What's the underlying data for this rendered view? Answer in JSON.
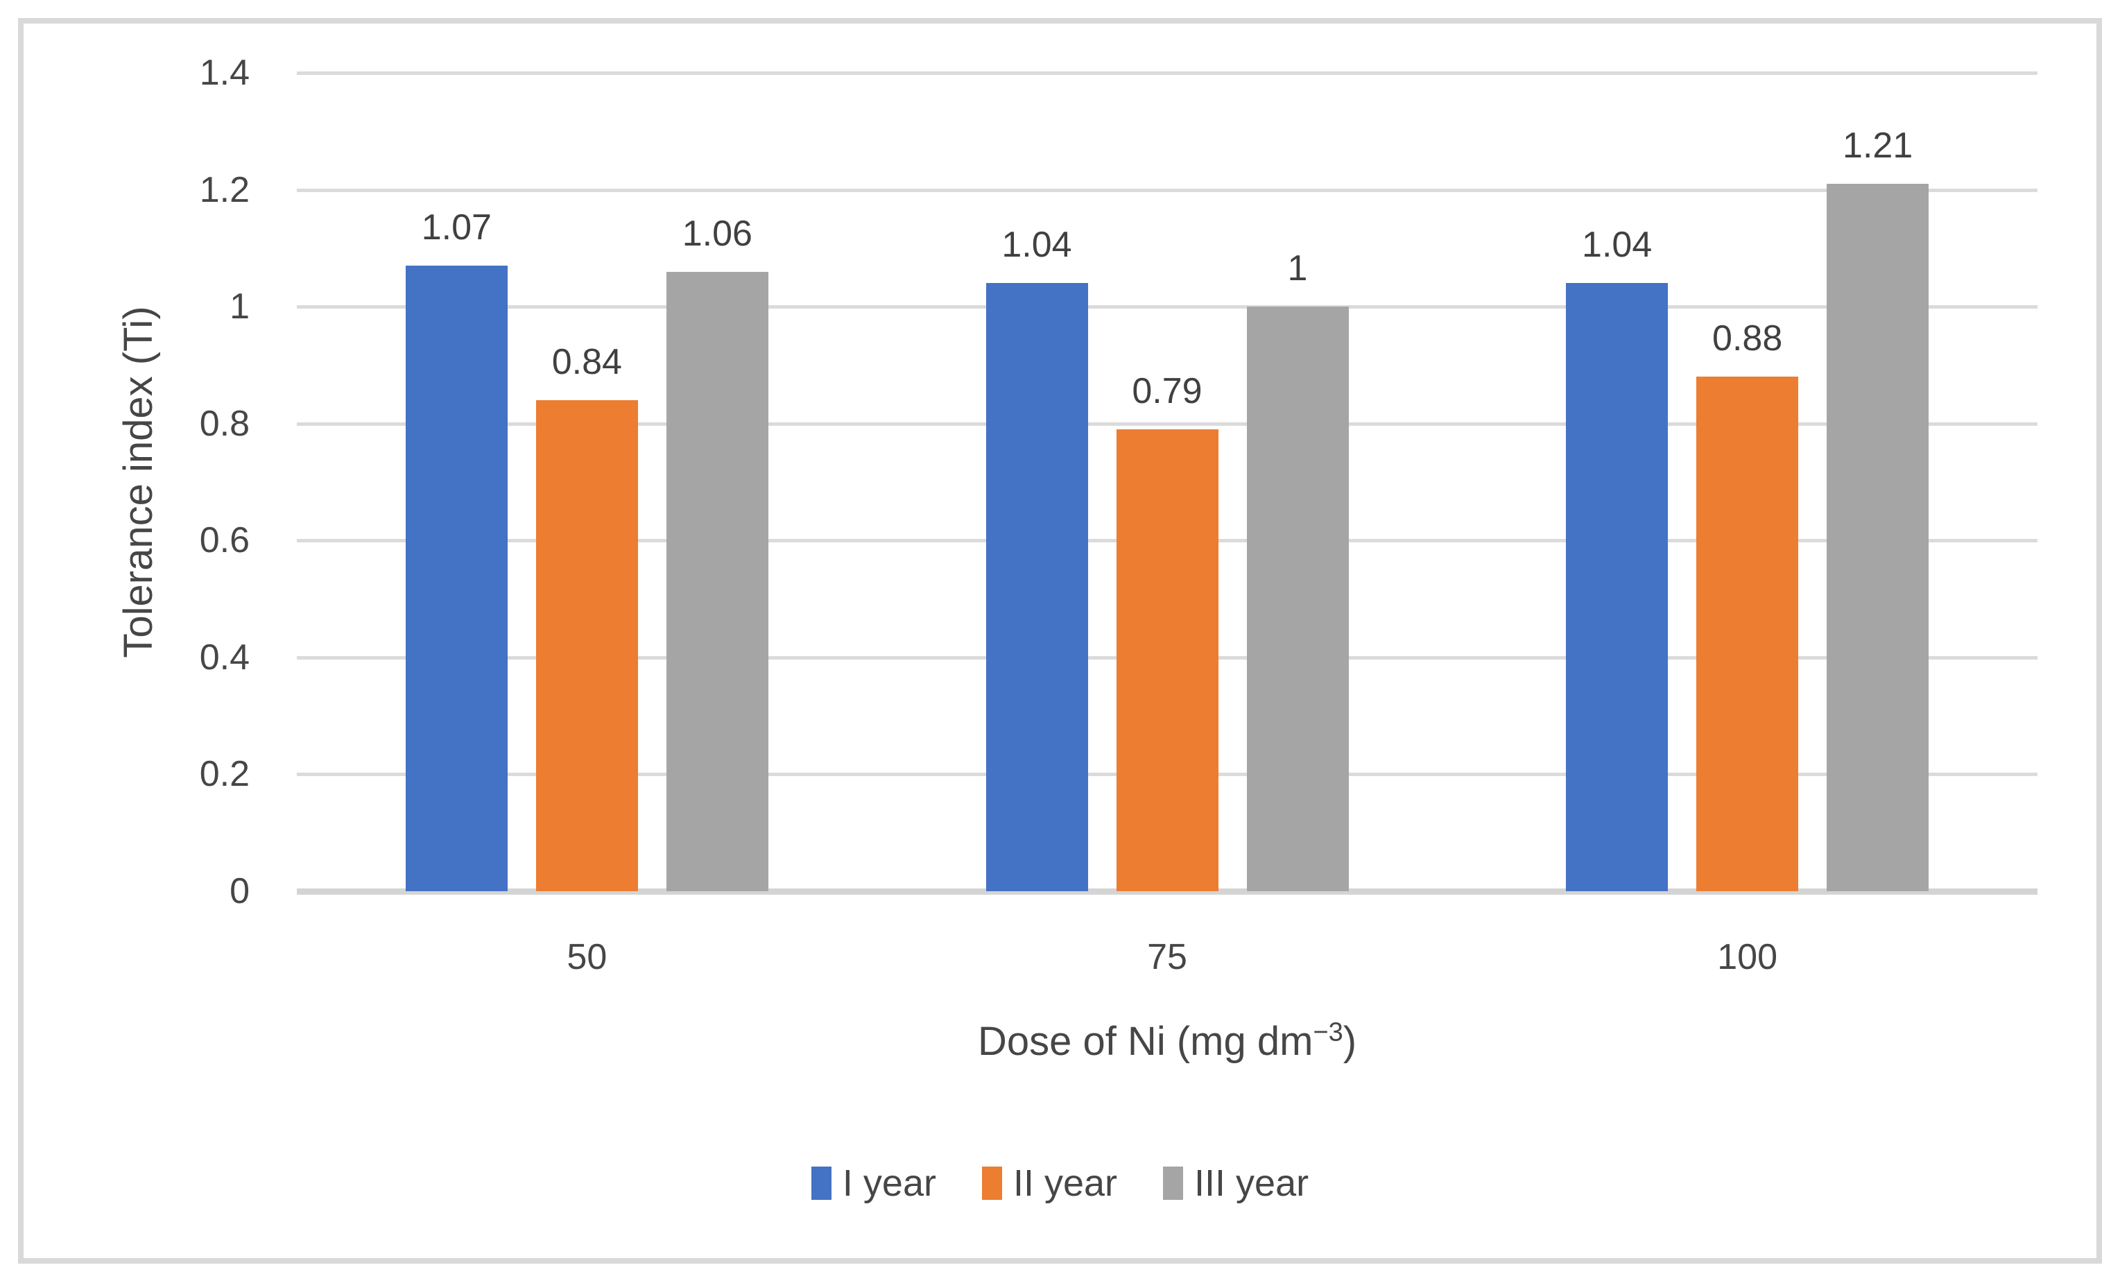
{
  "chart_data": {
    "type": "bar",
    "title": "",
    "categories": [
      "50",
      "75",
      "100"
    ],
    "series": [
      {
        "name": "I year",
        "color": "#4472C4",
        "values": [
          1.07,
          1.04,
          1.04
        ],
        "labels": [
          "1.07",
          "1.04",
          "1.04"
        ]
      },
      {
        "name": "II year",
        "color": "#ED7D31",
        "values": [
          0.84,
          0.79,
          0.88
        ],
        "labels": [
          "0.84",
          "0.79",
          "0.88"
        ]
      },
      {
        "name": "III year",
        "color": "#A5A5A5",
        "values": [
          1.06,
          1.0,
          1.21
        ],
        "labels": [
          "1.06",
          "1",
          "1.21"
        ]
      }
    ],
    "xlabel": "Dose of Ni (mg dm−3)",
    "xlabel_parts": {
      "base": "Dose of Ni (mg dm",
      "sup": "−3",
      "close": ")"
    },
    "ylabel": "Tolerance index (Ti)",
    "ylim": [
      0,
      1.4
    ],
    "ytick_step": 0.2,
    "yticks": [
      "1.4",
      "1.2",
      "1",
      "0.8",
      "0.6",
      "0.4",
      "0.2",
      "0"
    ],
    "grid": true,
    "legend_position": "bottom"
  },
  "colors": {
    "gridline": "#DBDBDB",
    "axis_line": "#D4D4D4",
    "frame_border": "#D9D9D9",
    "text": "#464646",
    "background": "#FFFFFF"
  }
}
